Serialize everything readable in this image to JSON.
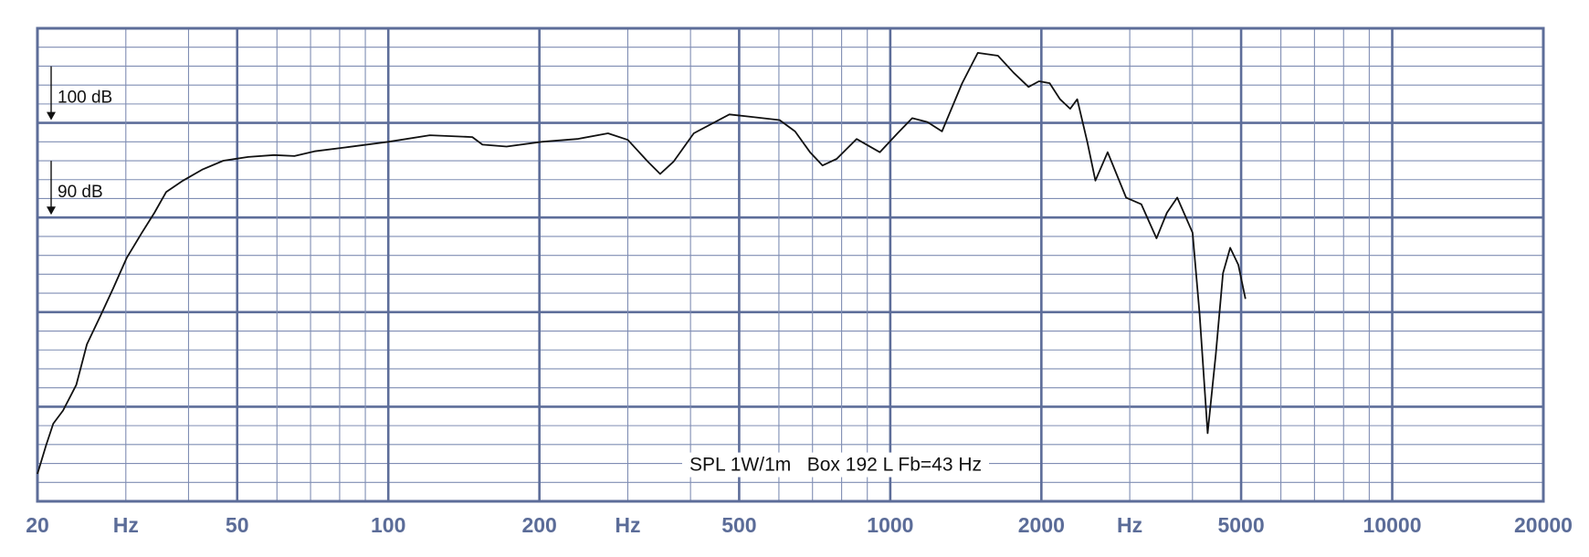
{
  "chart_data": {
    "type": "line",
    "annotation": "SPL 1W/1m   Box 192 L Fb=43 Hz",
    "x_log": true,
    "grid": true,
    "xlim": [
      20,
      20000
    ],
    "ylim": [
      60,
      110
    ],
    "xticks": [
      20,
      {
        "value": 30,
        "label": "Hz"
      },
      50,
      100,
      200,
      {
        "value": 300,
        "label": "Hz"
      },
      500,
      1000,
      2000,
      {
        "value": 3000,
        "label": "Hz"
      },
      5000,
      10000,
      20000
    ],
    "yticks": [
      {
        "value": 90,
        "label": "90 dB"
      },
      {
        "value": 100,
        "label": "100 dB"
      }
    ],
    "x": [
      20,
      20.8,
      21.5,
      22.5,
      23.9,
      25.1,
      26.7,
      28.3,
      30.1,
      32.3,
      34.2,
      36.1,
      39,
      42.7,
      46.9,
      52.6,
      59.2,
      65,
      71.3,
      82,
      100,
      121,
      147,
      154,
      172,
      202,
      238,
      274,
      300,
      329,
      348,
      370,
      406,
      478,
      537,
      602,
      646,
      692,
      733,
      782,
      857,
      953,
      1034,
      1106,
      1185,
      1268,
      1391,
      1494,
      1639,
      1761,
      1886,
      1978,
      2077,
      2179,
      2283,
      2358,
      2469,
      2563,
      2711,
      2950,
      3164,
      3392,
      3557,
      3729,
      4001,
      4133,
      4288,
      4451,
      4600,
      4755,
      4937,
      5100
    ],
    "series": [
      {
        "color": "#111111",
        "values": [
          62.9,
          65.9,
          68.2,
          69.6,
          72.3,
          76.6,
          79.6,
          82.5,
          85.7,
          88.4,
          90.5,
          92.7,
          93.9,
          95.1,
          96.0,
          96.4,
          96.6,
          96.5,
          97.0,
          97.4,
          98.0,
          98.7,
          98.5,
          97.7,
          97.5,
          98.0,
          98.3,
          98.9,
          98.2,
          95.9,
          94.6,
          95.9,
          98.9,
          100.9,
          100.6,
          100.3,
          99.1,
          96.9,
          95.5,
          96.2,
          98.3,
          96.9,
          98.9,
          100.5,
          100.1,
          99.1,
          104.2,
          107.4,
          107.1,
          105.3,
          103.8,
          104.4,
          104.2,
          102.5,
          101.5,
          102.5,
          98.0,
          93.9,
          96.9,
          92.1,
          91.4,
          87.8,
          90.5,
          92.1,
          88.4,
          79.8,
          67.2,
          75.5,
          84.1,
          86.8,
          85.0,
          81.4
        ]
      }
    ]
  }
}
